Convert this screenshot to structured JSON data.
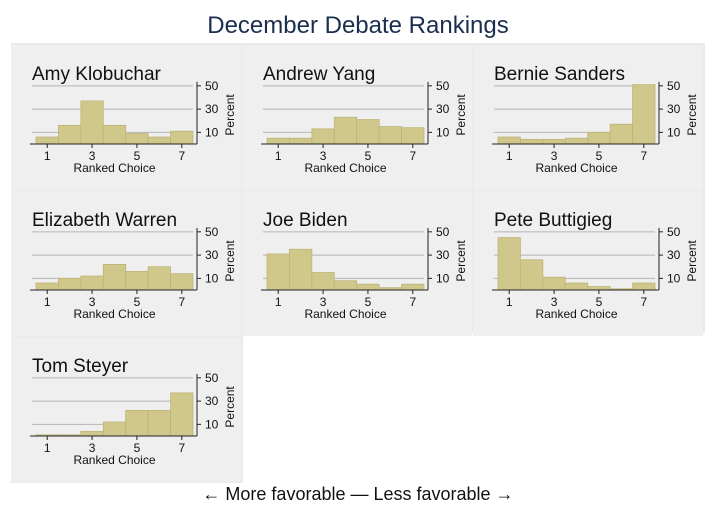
{
  "title": "December Debate Rankings",
  "footer": "← More favorable — Less favorable →",
  "colors": {
    "outer_bg": "#eaeaea",
    "panel_bg": "#efefef",
    "bar_fill": "#d0c88a",
    "bar_stroke": "#bdb577",
    "grid": "#b4b4b4",
    "axis": "#222222",
    "title": "#1a2e4f"
  },
  "chart_data": [
    {
      "type": "bar",
      "title": "Amy Klobuchar",
      "categories": [
        1,
        2,
        3,
        4,
        5,
        6,
        7
      ],
      "values": [
        6,
        16,
        37,
        16,
        9,
        6,
        11
      ],
      "xlabel": "Ranked Choice",
      "ylabel": "Percent",
      "xticks": [
        1,
        3,
        5,
        7
      ],
      "yticks": [
        10,
        30,
        50
      ],
      "ylim": [
        0,
        55
      ],
      "grid": true
    },
    {
      "type": "bar",
      "title": "Andrew Yang",
      "categories": [
        1,
        2,
        3,
        4,
        5,
        6,
        7
      ],
      "values": [
        5,
        5,
        13,
        23,
        21,
        15,
        14
      ],
      "xlabel": "Ranked Choice",
      "ylabel": "Percent",
      "xticks": [
        1,
        3,
        5,
        7
      ],
      "yticks": [
        10,
        30,
        50
      ],
      "ylim": [
        0,
        55
      ],
      "grid": true
    },
    {
      "type": "bar",
      "title": "Bernie Sanders",
      "categories": [
        1,
        2,
        3,
        4,
        5,
        6,
        7
      ],
      "values": [
        6,
        4,
        4,
        5,
        10,
        17,
        51
      ],
      "xlabel": "Ranked Choice",
      "ylabel": "Percent",
      "xticks": [
        1,
        3,
        5,
        7
      ],
      "yticks": [
        10,
        30,
        50
      ],
      "ylim": [
        0,
        55
      ],
      "grid": true
    },
    {
      "type": "bar",
      "title": "Elizabeth Warren",
      "categories": [
        1,
        2,
        3,
        4,
        5,
        6,
        7
      ],
      "values": [
        6,
        10,
        12,
        22,
        16,
        20,
        14
      ],
      "xlabel": "Ranked Choice",
      "ylabel": "Percent",
      "xticks": [
        1,
        3,
        5,
        7
      ],
      "yticks": [
        10,
        30,
        50
      ],
      "ylim": [
        0,
        55
      ],
      "grid": true
    },
    {
      "type": "bar",
      "title": "Joe Biden",
      "categories": [
        1,
        2,
        3,
        4,
        5,
        6,
        7
      ],
      "values": [
        31,
        35,
        15,
        8,
        5,
        2,
        5
      ],
      "xlabel": "Ranked Choice",
      "ylabel": "Percent",
      "xticks": [
        1,
        3,
        5,
        7
      ],
      "yticks": [
        10,
        30,
        50
      ],
      "ylim": [
        0,
        55
      ],
      "grid": true
    },
    {
      "type": "bar",
      "title": "Pete Buttigieg",
      "categories": [
        1,
        2,
        3,
        4,
        5,
        6,
        7
      ],
      "values": [
        45,
        26,
        11,
        6,
        3,
        1,
        6
      ],
      "xlabel": "Ranked Choice",
      "ylabel": "Percent",
      "xticks": [
        1,
        3,
        5,
        7
      ],
      "yticks": [
        10,
        30,
        50
      ],
      "ylim": [
        0,
        55
      ],
      "grid": true
    },
    {
      "type": "bar",
      "title": "Tom Steyer",
      "categories": [
        1,
        2,
        3,
        4,
        5,
        6,
        7
      ],
      "values": [
        1,
        1,
        4,
        12,
        22,
        22,
        37
      ],
      "xlabel": "Ranked Choice",
      "ylabel": "Percent",
      "xticks": [
        1,
        3,
        5,
        7
      ],
      "yticks": [
        10,
        30,
        50
      ],
      "ylim": [
        0,
        55
      ],
      "grid": true
    }
  ]
}
